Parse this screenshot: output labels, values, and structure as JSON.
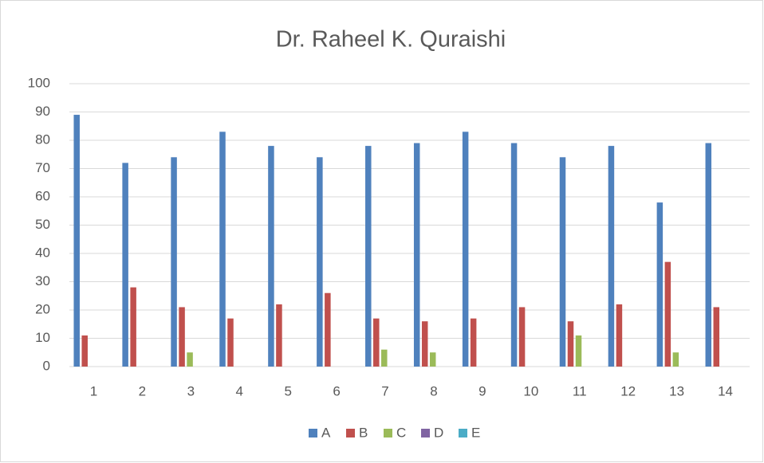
{
  "chart_data": {
    "type": "bar",
    "title": "Dr. Raheel K. Quraishi",
    "categories": [
      "1",
      "2",
      "3",
      "4",
      "5",
      "6",
      "7",
      "8",
      "9",
      "10",
      "11",
      "12",
      "13",
      "14"
    ],
    "series": [
      {
        "name": "A",
        "color": "#4f81bd",
        "values": [
          89,
          72,
          74,
          83,
          78,
          74,
          78,
          79,
          83,
          79,
          74,
          78,
          58,
          79
        ]
      },
      {
        "name": "B",
        "color": "#c0504d",
        "values": [
          11,
          28,
          21,
          17,
          22,
          26,
          17,
          16,
          17,
          21,
          16,
          22,
          37,
          21
        ]
      },
      {
        "name": "C",
        "color": "#9bbb59",
        "values": [
          0,
          0,
          5,
          0,
          0,
          0,
          6,
          5,
          0,
          0,
          11,
          0,
          5,
          0
        ]
      },
      {
        "name": "D",
        "color": "#8064a2",
        "values": [
          0,
          0,
          0,
          0,
          0,
          0,
          0,
          0,
          0,
          0,
          0,
          0,
          0,
          0
        ]
      },
      {
        "name": "E",
        "color": "#4bacc6",
        "values": [
          0,
          0,
          0,
          0,
          0,
          0,
          0,
          0,
          0,
          0,
          0,
          0,
          0,
          0
        ]
      }
    ],
    "ylim": [
      0,
      100
    ],
    "yticks": [
      0,
      10,
      20,
      30,
      40,
      50,
      60,
      70,
      80,
      90,
      100
    ],
    "grid": true,
    "legend": "bottom"
  }
}
